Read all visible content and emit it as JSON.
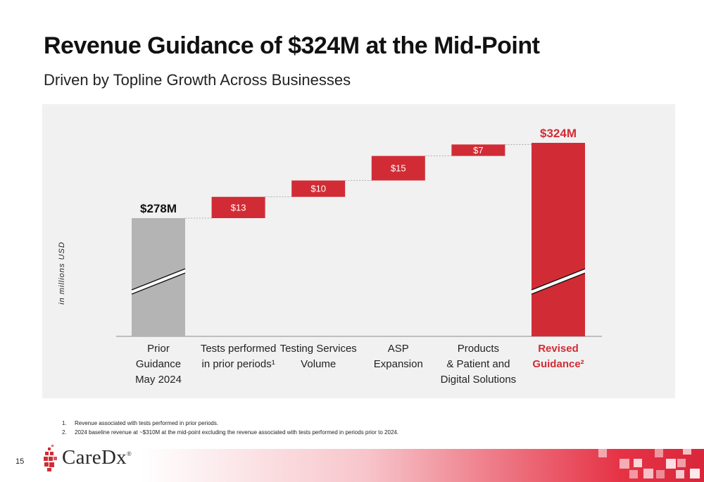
{
  "page": {
    "title": "Revenue Guidance of $324M at the Mid-Point",
    "subtitle": "Driven by Topline Growth Across Businesses",
    "page_number": "15",
    "logo_text": "CareDx",
    "logo_mark": "®"
  },
  "footnotes": [
    {
      "num": "1.",
      "text": "Revenue associated with tests performed in prior periods."
    },
    {
      "num": "2.",
      "text": "2024 baseline revenue at ~$310M at the mid-point excluding the revenue associated with tests performed in periods prior to 2024."
    }
  ],
  "colors": {
    "total_gray": "#b4b4b4",
    "increment_red": "#d12c35",
    "total_red": "#d12c35",
    "label_red": "#d12c35",
    "panel_bg": "#f1f1f1"
  },
  "chart_data": {
    "type": "bar",
    "subtype": "waterfall",
    "ylabel": "in millions USD",
    "axis_break": true,
    "categories": [
      [
        "Prior",
        "Guidance",
        "May 2024"
      ],
      [
        "Tests performed",
        "in prior periods¹"
      ],
      [
        "Testing Services",
        "Volume"
      ],
      [
        "ASP",
        "Expansion"
      ],
      [
        "Products",
        "& Patient and",
        "Digital Solutions"
      ],
      [
        "Revised",
        "Guidance²"
      ]
    ],
    "values": [
      278,
      13,
      10,
      15,
      7,
      324
    ],
    "kinds": [
      "total",
      "increment",
      "increment",
      "increment",
      "increment",
      "total"
    ],
    "data_labels": [
      "$278M",
      "$13",
      "$10",
      "$15",
      "$7",
      "$324M"
    ],
    "highlight_last": true
  }
}
